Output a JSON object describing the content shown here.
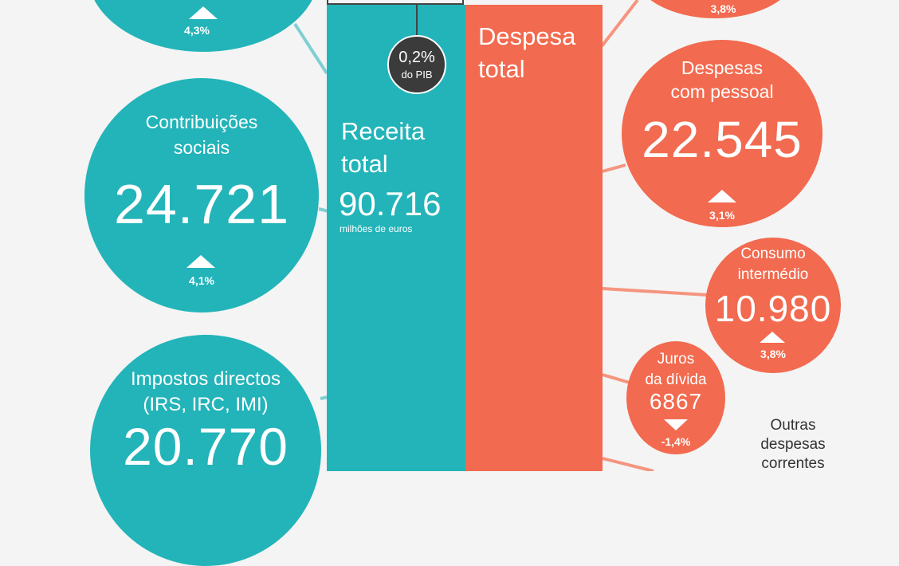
{
  "top_left_pct": "4,3%",
  "top_right_pct": "3,8%",
  "deficit": {
    "pct": "0,2%",
    "label": "do PIB"
  },
  "receita": {
    "title_l1": "Receita",
    "title_l2": "total",
    "value": "90.716",
    "unit": "milhões de euros",
    "color": "#22b4b9"
  },
  "despesa": {
    "title_l1": "Despesa",
    "title_l2": "total",
    "color": "#f26a4f"
  },
  "contribuicoes": {
    "label_l1": "Contribuições",
    "label_l2": "sociais",
    "value": "24.721",
    "pct": "4,1%",
    "trend": "up"
  },
  "impostos_directos": {
    "label_l1": "Impostos directos",
    "label_l2": "(IRS, IRC, IMI)",
    "value": "20.770"
  },
  "despesas_pessoal": {
    "label_l1": "Despesas",
    "label_l2": "com pessoal",
    "value": "22.545",
    "pct": "3,1%",
    "trend": "up"
  },
  "consumo": {
    "label_l1": "Consumo",
    "label_l2": "intermédio",
    "value": "10.980",
    "pct": "3,8%",
    "trend": "up"
  },
  "juros": {
    "label_l1": "Juros",
    "label_l2": "da dívida",
    "value": "6867",
    "pct": "-1,4%",
    "trend": "down"
  },
  "outras": {
    "l1": "Outras",
    "l2": "despesas",
    "l3": "correntes"
  }
}
